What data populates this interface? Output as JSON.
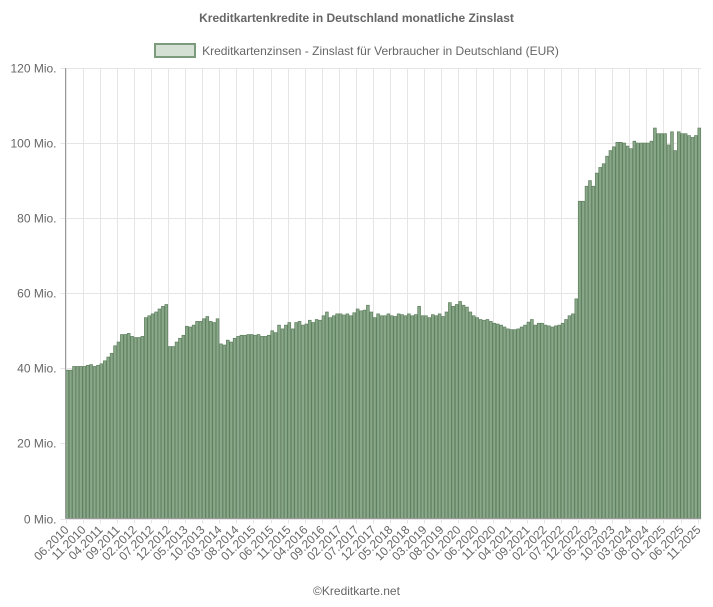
{
  "title": "Kreditkartenkredite in Deutschland monatliche Zinslast",
  "legend": {
    "label": "Kreditkartenzinsen - Zinslast für Verbraucher in Deutschland (EUR)",
    "fill": "#d3e0d3",
    "border": "#7c9a7c"
  },
  "footer": "©Kreditkarte.net",
  "colors": {
    "bar_fill": "#89a889",
    "bar_border": "#5e7f5e",
    "grid": "#e5e5e5",
    "axis": "#999999"
  },
  "chart_data": {
    "type": "bar",
    "title": "Kreditkartenkredite in Deutschland monatliche Zinslast",
    "xlabel": "",
    "ylabel": "",
    "ylim": [
      0,
      120
    ],
    "y_unit": "Mio.",
    "y_ticks": [
      "0 Mio.",
      "20 Mio.",
      "40 Mio.",
      "60 Mio.",
      "80 Mio.",
      "100 Mio.",
      "120 Mio."
    ],
    "x_tick_labels": [
      "06.2010",
      "11.2010",
      "04.2011",
      "09.2011",
      "02.2012",
      "07.2012",
      "12.2012",
      "05.2013",
      "10.2013",
      "03.2014",
      "08.2014",
      "01.2015",
      "06.2015",
      "11.2015",
      "04.2016",
      "09.2016",
      "02.2017",
      "07.2017",
      "12.2017",
      "05.2018",
      "10.2018",
      "03.2019",
      "08.2019",
      "01.2020",
      "06.2020",
      "11.2020",
      "04.2021",
      "09.2021",
      "02.2022",
      "07.2022",
      "12.2022",
      "05.2023",
      "10.2023",
      "03.2024",
      "08.2024",
      "01.2025",
      "06.2025",
      "11.2025"
    ],
    "x_start": "06.2010",
    "x_end": "11.2025",
    "grid": true,
    "legend_position": "top",
    "series": [
      {
        "name": "Kreditkartenzinsen - Zinslast für Verbraucher in Deutschland (EUR)",
        "values": [
          39.5,
          39.5,
          40.5,
          40.5,
          40.5,
          40.5,
          40.8,
          41,
          40.5,
          40.8,
          41.2,
          42,
          43,
          44,
          46,
          47,
          49,
          49,
          49.3,
          48.5,
          48.2,
          48.2,
          48.5,
          53.5,
          54,
          54.5,
          55,
          55.8,
          56.5,
          57,
          45.8,
          45.8,
          47,
          48,
          48.8,
          51.2,
          51,
          51.5,
          52.5,
          52.5,
          53.2,
          53.8,
          52.5,
          52.2,
          53.2,
          46.5,
          46.2,
          47.5,
          47,
          48,
          48.5,
          48.8,
          48.8,
          49,
          49,
          48.8,
          49,
          48.5,
          48.5,
          48.8,
          50,
          49.5,
          51.5,
          50.5,
          51.5,
          52.2,
          50.5,
          52.2,
          52.5,
          51.5,
          51.8,
          52.8,
          52.2,
          53,
          52.8,
          54,
          55,
          53.5,
          54,
          54.5,
          54.5,
          54.2,
          54.5,
          54,
          54.8,
          55.8,
          55.3,
          55.5,
          56.8,
          55,
          53.5,
          54.5,
          54,
          54,
          54.5,
          54,
          53.8,
          54.5,
          54.3,
          54,
          54.5,
          54,
          54.3,
          56.5,
          54,
          54,
          53.5,
          54.3,
          54,
          54.5,
          53.8,
          55,
          57.5,
          56.5,
          57,
          57.8,
          56.8,
          56.3,
          55,
          54,
          53.5,
          53,
          52.8,
          53,
          52.5,
          52,
          51.8,
          51.5,
          51,
          50.5,
          50.3,
          50.3,
          50.5,
          51,
          51.5,
          52.3,
          53,
          51.5,
          52,
          52,
          51.5,
          51.3,
          51,
          51.3,
          51.5,
          52,
          53,
          54,
          54.5,
          58.5,
          84.5,
          84.5,
          88.5,
          90,
          88.5,
          92,
          93.5,
          94.5,
          96.5,
          98,
          99,
          100.2,
          100.2,
          100,
          99.2,
          98.5,
          100.5,
          100,
          100,
          100,
          100,
          100.5,
          104,
          102.5,
          102.5,
          102.5,
          99.5,
          103,
          98,
          103,
          102.5,
          102.5,
          102,
          101.5,
          102,
          104
        ]
      }
    ]
  }
}
